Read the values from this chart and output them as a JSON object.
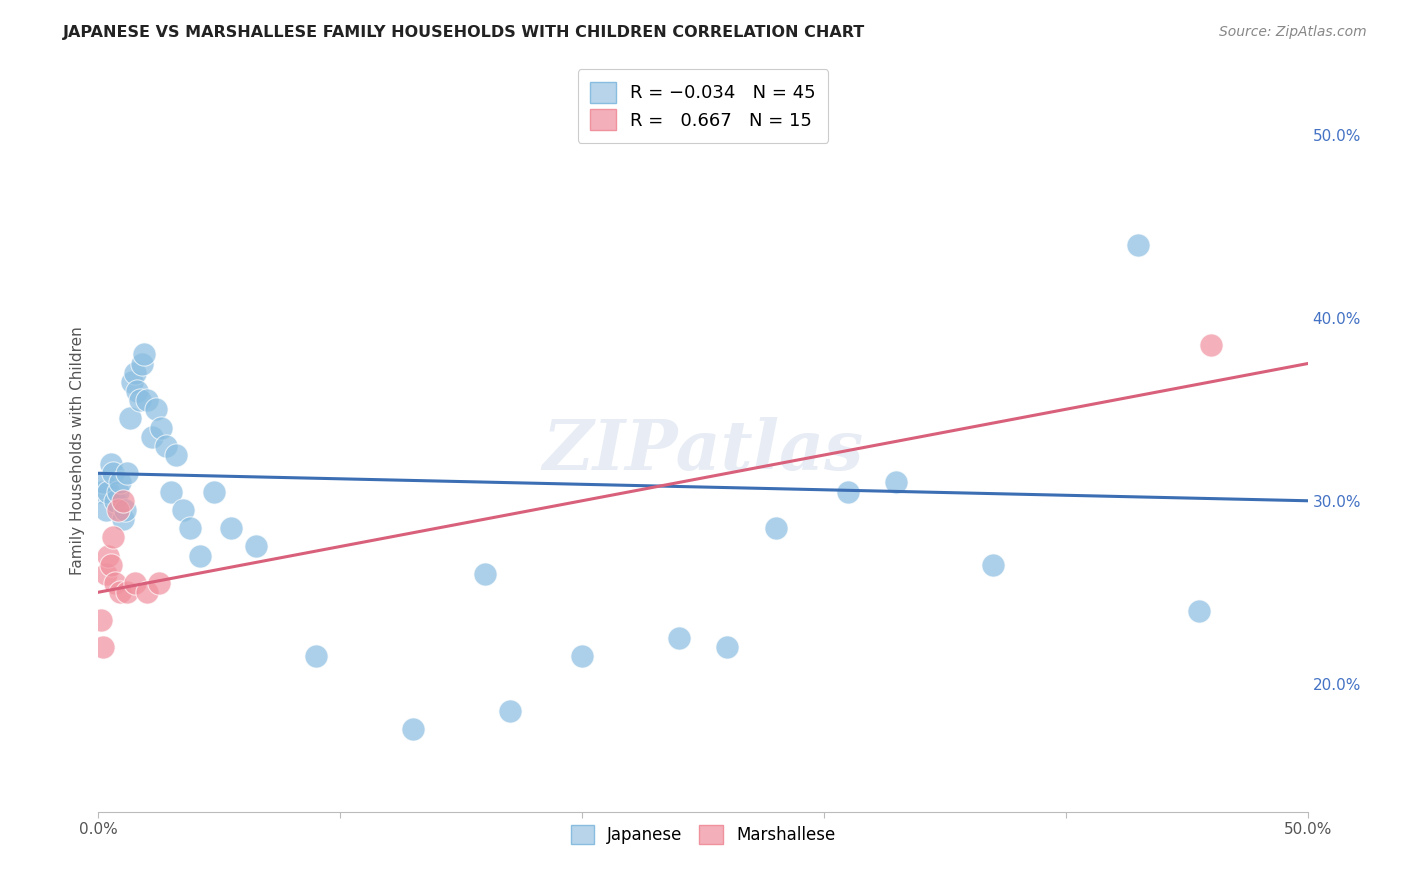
{
  "title": "JAPANESE VS MARSHALLESE FAMILY HOUSEHOLDS WITH CHILDREN CORRELATION CHART",
  "source": "Source: ZipAtlas.com",
  "ylabel_label": "Family Households with Children",
  "x_min": 0.0,
  "x_max": 0.5,
  "y_min": 0.13,
  "y_max": 0.525,
  "x_tick_positions": [
    0.0,
    0.1,
    0.2,
    0.3,
    0.4,
    0.5
  ],
  "x_tick_labels": [
    "0.0%",
    "",
    "",
    "",
    "",
    "50.0%"
  ],
  "y_tick_vals_right": [
    0.2,
    0.3,
    0.4,
    0.5
  ],
  "y_tick_labels_right": [
    "20.0%",
    "30.0%",
    "40.0%",
    "50.0%"
  ],
  "japanese_color": "#89bde0",
  "marshallese_color": "#f0919e",
  "trend_japanese_color": "#3c6eb4",
  "trend_marshallese_color": "#d9607a",
  "watermark": "ZIPatlas",
  "japanese_x": [
    0.001,
    0.002,
    0.003,
    0.004,
    0.005,
    0.006,
    0.007,
    0.008,
    0.009,
    0.01,
    0.011,
    0.012,
    0.013,
    0.014,
    0.015,
    0.016,
    0.017,
    0.018,
    0.019,
    0.02,
    0.022,
    0.024,
    0.026,
    0.028,
    0.03,
    0.032,
    0.035,
    0.038,
    0.042,
    0.048,
    0.055,
    0.065,
    0.09,
    0.16,
    0.2,
    0.24,
    0.28,
    0.31,
    0.37,
    0.43,
    0.455,
    0.13,
    0.17,
    0.26,
    0.33
  ],
  "japanese_y": [
    0.305,
    0.31,
    0.295,
    0.305,
    0.32,
    0.315,
    0.3,
    0.305,
    0.31,
    0.29,
    0.295,
    0.315,
    0.345,
    0.365,
    0.37,
    0.36,
    0.355,
    0.375,
    0.38,
    0.355,
    0.335,
    0.35,
    0.34,
    0.33,
    0.305,
    0.325,
    0.295,
    0.285,
    0.27,
    0.305,
    0.285,
    0.275,
    0.215,
    0.26,
    0.215,
    0.225,
    0.285,
    0.305,
    0.265,
    0.44,
    0.24,
    0.175,
    0.185,
    0.22,
    0.31
  ],
  "marshallese_x": [
    0.001,
    0.002,
    0.003,
    0.004,
    0.005,
    0.006,
    0.007,
    0.008,
    0.009,
    0.01,
    0.012,
    0.015,
    0.02,
    0.025,
    0.46
  ],
  "marshallese_y": [
    0.235,
    0.22,
    0.26,
    0.27,
    0.265,
    0.28,
    0.255,
    0.295,
    0.25,
    0.3,
    0.25,
    0.255,
    0.25,
    0.255,
    0.385
  ],
  "trend_jap_x0": 0.0,
  "trend_jap_y0": 0.315,
  "trend_jap_x1": 0.5,
  "trend_jap_y1": 0.3,
  "trend_mar_x0": 0.0,
  "trend_mar_y0": 0.25,
  "trend_mar_x1": 0.5,
  "trend_mar_y1": 0.375,
  "grid_color": "#d0d8e8",
  "background_color": "#ffffff",
  "legend_jap_color": "#b8d4ea",
  "legend_mar_color": "#f4b0ba",
  "legend_jap_edge": "#89bde0",
  "legend_mar_edge": "#f0919e"
}
